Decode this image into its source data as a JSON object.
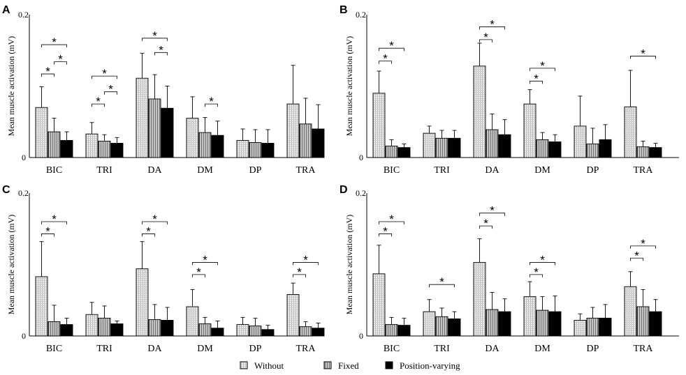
{
  "colors": {
    "axis": "#000000",
    "without": "#dddddd",
    "fixed": "#9a9a9a",
    "position_varying": "#000000"
  },
  "chart_data": [
    {
      "type": "bar",
      "panel": "A",
      "ylabel": "Mean muscle activation (mV)",
      "ylim": [
        0,
        0.2
      ],
      "yticks": [
        "0",
        "0.2"
      ],
      "categories": [
        "BIC",
        "TRI",
        "DA",
        "DM",
        "DP",
        "TRA"
      ],
      "series": [
        {
          "name": "Without",
          "values": [
            0.07,
            0.033,
            0.111,
            0.055,
            0.024,
            0.075
          ],
          "errors": [
            0.029,
            0.016,
            0.035,
            0.03,
            0.016,
            0.054
          ]
        },
        {
          "name": "Fixed",
          "values": [
            0.036,
            0.023,
            0.082,
            0.035,
            0.021,
            0.047
          ],
          "errors": [
            0.019,
            0.009,
            0.034,
            0.021,
            0.018,
            0.036
          ]
        },
        {
          "name": "Position-varying",
          "values": [
            0.024,
            0.02,
            0.069,
            0.031,
            0.02,
            0.04
          ],
          "errors": [
            0.012,
            0.008,
            0.031,
            0.02,
            0.019,
            0.034
          ]
        }
      ],
      "annotations": [
        {
          "cat": 0,
          "from": 0,
          "to": 2,
          "level": 0.158,
          "label": "*"
        },
        {
          "cat": 0,
          "from": 1,
          "to": 2,
          "level": 0.134,
          "label": "*"
        },
        {
          "cat": 0,
          "from": 0,
          "to": 1,
          "level": 0.117,
          "label": "*"
        },
        {
          "cat": 1,
          "from": 0,
          "to": 2,
          "level": 0.114,
          "label": "*"
        },
        {
          "cat": 1,
          "from": 1,
          "to": 2,
          "level": 0.092,
          "label": "*"
        },
        {
          "cat": 1,
          "from": 0,
          "to": 1,
          "level": 0.075,
          "label": "*"
        },
        {
          "cat": 2,
          "from": 0,
          "to": 2,
          "level": 0.167,
          "label": "*"
        },
        {
          "cat": 2,
          "from": 1,
          "to": 2,
          "level": 0.147,
          "label": "*"
        },
        {
          "cat": 3,
          "from": 1,
          "to": 2,
          "level": 0.075,
          "label": "*"
        }
      ]
    },
    {
      "type": "bar",
      "panel": "B",
      "ylabel": "Mean muscle activation (mV)",
      "ylim": [
        0,
        0.2
      ],
      "yticks": [
        "0",
        "0.2"
      ],
      "categories": [
        "BIC",
        "TRI",
        "DA",
        "DM",
        "DP",
        "TRA"
      ],
      "series": [
        {
          "name": "Without",
          "values": [
            0.09,
            0.034,
            0.128,
            0.075,
            0.044,
            0.071
          ],
          "errors": [
            0.031,
            0.01,
            0.032,
            0.02,
            0.042,
            0.051
          ]
        },
        {
          "name": "Fixed",
          "values": [
            0.016,
            0.027,
            0.039,
            0.025,
            0.019,
            0.015
          ],
          "errors": [
            0.009,
            0.011,
            0.022,
            0.01,
            0.022,
            0.008
          ]
        },
        {
          "name": "Position-varying",
          "values": [
            0.014,
            0.027,
            0.032,
            0.022,
            0.025,
            0.014
          ],
          "errors": [
            0.005,
            0.011,
            0.021,
            0.01,
            0.021,
            0.006
          ]
        }
      ],
      "annotations": [
        {
          "cat": 0,
          "from": 0,
          "to": 2,
          "level": 0.153,
          "label": "*"
        },
        {
          "cat": 0,
          "from": 0,
          "to": 1,
          "level": 0.135,
          "label": "*"
        },
        {
          "cat": 2,
          "from": 0,
          "to": 2,
          "level": 0.183,
          "label": "*"
        },
        {
          "cat": 2,
          "from": 0,
          "to": 1,
          "level": 0.165,
          "label": "*"
        },
        {
          "cat": 3,
          "from": 0,
          "to": 2,
          "level": 0.125,
          "label": "*"
        },
        {
          "cat": 3,
          "from": 0,
          "to": 1,
          "level": 0.107,
          "label": "*"
        },
        {
          "cat": 5,
          "from": 0,
          "to": 2,
          "level": 0.142,
          "label": "*"
        }
      ]
    },
    {
      "type": "bar",
      "panel": "C",
      "ylabel": "Mean muscle activation (mV)",
      "ylim": [
        0,
        0.2
      ],
      "yticks": [
        "0",
        "0.2"
      ],
      "categories": [
        "BIC",
        "TRI",
        "DA",
        "DM",
        "DP",
        "TRA"
      ],
      "series": [
        {
          "name": "Without",
          "values": [
            0.083,
            0.03,
            0.094,
            0.041,
            0.016,
            0.058
          ],
          "errors": [
            0.049,
            0.017,
            0.038,
            0.024,
            0.01,
            0.016
          ]
        },
        {
          "name": "Fixed",
          "values": [
            0.02,
            0.025,
            0.023,
            0.017,
            0.014,
            0.013
          ],
          "errors": [
            0.023,
            0.017,
            0.021,
            0.009,
            0.011,
            0.007
          ]
        },
        {
          "name": "Position-varying",
          "values": [
            0.016,
            0.017,
            0.022,
            0.011,
            0.009,
            0.011
          ],
          "errors": [
            0.009,
            0.004,
            0.018,
            0.01,
            0.006,
            0.007
          ]
        }
      ],
      "annotations": [
        {
          "cat": 0,
          "from": 0,
          "to": 2,
          "level": 0.16,
          "label": "*"
        },
        {
          "cat": 0,
          "from": 0,
          "to": 1,
          "level": 0.143,
          "label": "*"
        },
        {
          "cat": 2,
          "from": 0,
          "to": 2,
          "level": 0.16,
          "label": "*"
        },
        {
          "cat": 2,
          "from": 0,
          "to": 1,
          "level": 0.143,
          "label": "*"
        },
        {
          "cat": 3,
          "from": 0,
          "to": 2,
          "level": 0.103,
          "label": "*"
        },
        {
          "cat": 3,
          "from": 0,
          "to": 1,
          "level": 0.086,
          "label": "*"
        },
        {
          "cat": 5,
          "from": 0,
          "to": 2,
          "level": 0.103,
          "label": "*"
        },
        {
          "cat": 5,
          "from": 0,
          "to": 1,
          "level": 0.086,
          "label": "*"
        }
      ]
    },
    {
      "type": "bar",
      "panel": "D",
      "ylabel": "Mean muscle activation (mV)",
      "ylim": [
        0,
        0.2
      ],
      "yticks": [
        "0",
        "0.2"
      ],
      "categories": [
        "BIC",
        "TRI",
        "DA",
        "DM",
        "DP",
        "TRA"
      ],
      "series": [
        {
          "name": "Without",
          "values": [
            0.087,
            0.034,
            0.103,
            0.055,
            0.022,
            0.069
          ],
          "errors": [
            0.04,
            0.017,
            0.033,
            0.021,
            0.009,
            0.021
          ]
        },
        {
          "name": "Fixed",
          "values": [
            0.016,
            0.027,
            0.037,
            0.036,
            0.025,
            0.041
          ],
          "errors": [
            0.01,
            0.012,
            0.024,
            0.019,
            0.015,
            0.024
          ]
        },
        {
          "name": "Position-varying",
          "values": [
            0.015,
            0.024,
            0.034,
            0.034,
            0.025,
            0.034
          ],
          "errors": [
            0.01,
            0.01,
            0.018,
            0.022,
            0.019,
            0.017
          ]
        }
      ],
      "annotations": [
        {
          "cat": 0,
          "from": 0,
          "to": 2,
          "level": 0.16,
          "label": "*"
        },
        {
          "cat": 0,
          "from": 0,
          "to": 1,
          "level": 0.143,
          "label": "*"
        },
        {
          "cat": 1,
          "from": 0,
          "to": 2,
          "level": 0.072,
          "label": "*"
        },
        {
          "cat": 2,
          "from": 0,
          "to": 2,
          "level": 0.172,
          "label": "*"
        },
        {
          "cat": 2,
          "from": 0,
          "to": 1,
          "level": 0.154,
          "label": "*"
        },
        {
          "cat": 3,
          "from": 0,
          "to": 2,
          "level": 0.103,
          "label": "*"
        },
        {
          "cat": 3,
          "from": 0,
          "to": 1,
          "level": 0.086,
          "label": "*"
        },
        {
          "cat": 5,
          "from": 0,
          "to": 2,
          "level": 0.126,
          "label": "*"
        },
        {
          "cat": 5,
          "from": 0,
          "to": 1,
          "level": 0.109,
          "label": "*"
        }
      ]
    }
  ],
  "legend": {
    "items": [
      "Without",
      "Fixed",
      "Position-varying"
    ]
  }
}
